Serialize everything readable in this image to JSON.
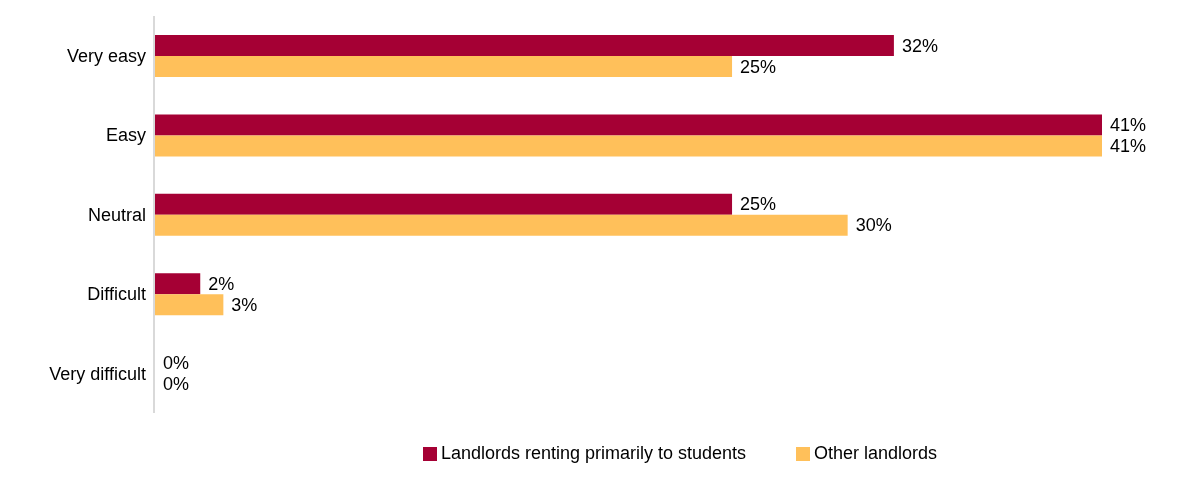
{
  "chart_data": {
    "type": "bar",
    "orientation": "horizontal",
    "categories": [
      "Very easy",
      "Easy",
      "Neutral",
      "Difficult",
      "Very difficult"
    ],
    "series": [
      {
        "name": "Landlords renting primarily to students",
        "color": "#a50034",
        "values": [
          32,
          41,
          25,
          2,
          0
        ],
        "value_labels": [
          "32%",
          "41%",
          "25%",
          "2%",
          "0%"
        ]
      },
      {
        "name": "Other landlords",
        "color": "#ffc05a",
        "values": [
          25,
          41,
          30,
          3,
          0
        ],
        "value_labels": [
          "25%",
          "41%",
          "30%",
          "3%",
          "0%"
        ]
      }
    ],
    "legend": "bottom"
  }
}
